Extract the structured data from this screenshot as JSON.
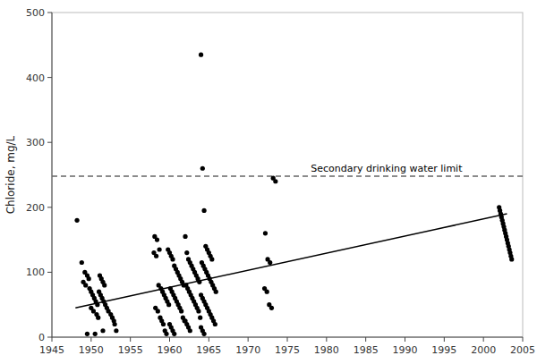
{
  "chart_data": {
    "type": "scatter",
    "ylabel": "Chloride, mg/L",
    "xlim": [
      1945,
      2005
    ],
    "ylim": [
      0,
      500
    ],
    "xticks": [
      1945,
      1950,
      1955,
      1960,
      1965,
      1970,
      1975,
      1980,
      1985,
      1990,
      1995,
      2000,
      2005
    ],
    "yticks": [
      0,
      100,
      200,
      300,
      400,
      500
    ],
    "grid": false,
    "series": [
      {
        "type": "scatter",
        "marker": "circle",
        "color": "#000000",
        "x": [
          1948.2,
          1948.8,
          1949.2,
          1949.5,
          1949.7,
          1949.0,
          1949.3,
          1949.8,
          1950.0,
          1950.2,
          1950.4,
          1950.6,
          1950.8,
          1950.0,
          1950.3,
          1950.7,
          1950.9,
          1951.1,
          1951.3,
          1951.5,
          1951.7,
          1951.0,
          1951.2,
          1951.4,
          1951.6,
          1951.8,
          1952.0,
          1952.2,
          1952.5,
          1952.7,
          1952.9,
          1953.0,
          1953.2,
          1949.5,
          1950.5,
          1951.5,
          1958.1,
          1958.4,
          1958.7,
          1958.0,
          1958.3,
          1958.6,
          1958.9,
          1959.1,
          1959.3,
          1959.5,
          1959.7,
          1959.9,
          1958.2,
          1958.5,
          1958.8,
          1959.0,
          1959.2,
          1959.4,
          1959.6,
          1959.8,
          1960.0,
          1960.2,
          1960.4,
          1960.6,
          1960.8,
          1961.0,
          1961.2,
          1961.4,
          1961.6,
          1961.8,
          1960.1,
          1960.3,
          1960.5,
          1960.7,
          1960.9,
          1961.1,
          1961.3,
          1961.5,
          1961.7,
          1961.9,
          1960.0,
          1960.2,
          1960.4,
          1960.6,
          1962.0,
          1962.2,
          1962.4,
          1962.6,
          1962.8,
          1963.0,
          1963.2,
          1963.4,
          1963.6,
          1963.8,
          1962.1,
          1962.3,
          1962.5,
          1962.7,
          1962.9,
          1963.1,
          1963.3,
          1963.5,
          1963.7,
          1963.9,
          1962.0,
          1962.2,
          1962.4,
          1962.6,
          1964.0,
          1964.2,
          1964.4,
          1964.6,
          1964.8,
          1965.0,
          1965.2,
          1965.4,
          1964.1,
          1964.3,
          1964.5,
          1964.7,
          1964.9,
          1965.1,
          1965.3,
          1965.5,
          1965.7,
          1965.9,
          1964.0,
          1964.2,
          1964.4,
          1964.6,
          1964.8,
          1965.0,
          1965.2,
          1965.4,
          1965.6,
          1965.8,
          1964.0,
          1964.2,
          1964.4,
          1972.2,
          1972.5,
          1972.8,
          1972.1,
          1972.4,
          1972.7,
          1973.0,
          1973.2,
          1973.5,
          2002.0,
          2002.1,
          2002.2,
          2002.3,
          2002.4,
          2002.5,
          2002.6,
          2002.7,
          2002.8,
          2002.9,
          2003.0,
          2003.1,
          2003.2,
          2003.3,
          2003.4,
          2003.5,
          2003.6
        ],
        "values": [
          180,
          115,
          100,
          95,
          90,
          85,
          80,
          75,
          70,
          65,
          60,
          55,
          50,
          45,
          40,
          35,
          30,
          95,
          90,
          85,
          80,
          70,
          65,
          60,
          55,
          50,
          45,
          40,
          35,
          30,
          25,
          20,
          10,
          5,
          5,
          10,
          155,
          150,
          135,
          130,
          125,
          80,
          75,
          70,
          65,
          60,
          55,
          50,
          45,
          40,
          30,
          25,
          20,
          10,
          5,
          135,
          130,
          125,
          120,
          110,
          105,
          100,
          95,
          90,
          85,
          80,
          75,
          70,
          65,
          60,
          55,
          50,
          45,
          40,
          30,
          25,
          20,
          15,
          10,
          5,
          155,
          130,
          120,
          115,
          110,
          105,
          100,
          95,
          90,
          85,
          80,
          75,
          70,
          65,
          60,
          55,
          50,
          45,
          40,
          30,
          25,
          20,
          15,
          10,
          435,
          260,
          195,
          140,
          135,
          130,
          125,
          120,
          115,
          110,
          105,
          100,
          95,
          90,
          85,
          80,
          75,
          70,
          65,
          60,
          55,
          50,
          45,
          40,
          35,
          30,
          25,
          20,
          15,
          10,
          5,
          160,
          120,
          115,
          75,
          70,
          50,
          45,
          245,
          240,
          200,
          195,
          190,
          185,
          180,
          175,
          170,
          165,
          160,
          155,
          150,
          145,
          140,
          135,
          130,
          125,
          120
        ]
      },
      {
        "type": "line",
        "line_style": "solid",
        "color": "#000000",
        "x": [
          1948,
          2003
        ],
        "values": [
          45,
          190
        ]
      }
    ],
    "reference_lines": [
      {
        "value": 248,
        "label": "Secondary drinking water limit",
        "label_x": 1978,
        "color": "#666666",
        "line_style": "dashed"
      }
    ]
  }
}
